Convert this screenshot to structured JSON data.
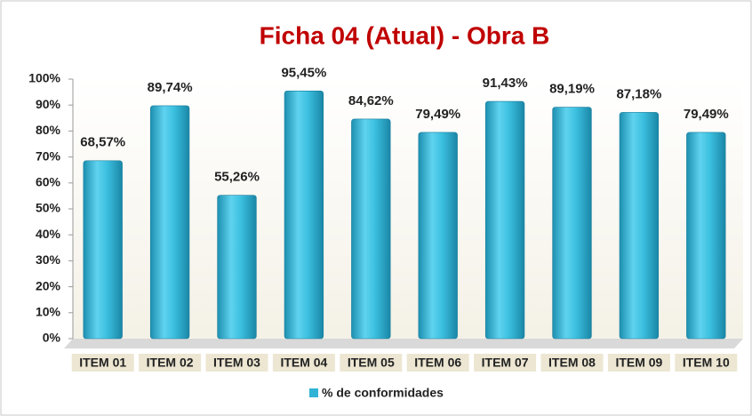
{
  "chart_data": {
    "type": "bar",
    "title": "Ficha 04 (Atual) - Obra B",
    "categories": [
      "ITEM 01",
      "ITEM 02",
      "ITEM 03",
      "ITEM 04",
      "ITEM 05",
      "ITEM 06",
      "ITEM 07",
      "ITEM 08",
      "ITEM 09",
      "ITEM 10"
    ],
    "series": [
      {
        "name": "% de conformidades",
        "color": "#2fb4d6",
        "values": [
          68.57,
          89.74,
          55.26,
          95.45,
          84.62,
          79.49,
          91.43,
          89.19,
          87.18,
          79.49
        ],
        "value_labels": [
          "68,57%",
          "89,74%",
          "55,26%",
          "95,45%",
          "84,62%",
          "79,49%",
          "91,43%",
          "89,19%",
          "87,18%",
          "79,49%"
        ]
      }
    ],
    "ylim": [
      0,
      100
    ],
    "yticks": [
      {
        "value": 0,
        "label": "0%"
      },
      {
        "value": 10,
        "label": "10%"
      },
      {
        "value": 20,
        "label": "20%"
      },
      {
        "value": 30,
        "label": "30%"
      },
      {
        "value": 40,
        "label": "40%"
      },
      {
        "value": 50,
        "label": "50%"
      },
      {
        "value": 60,
        "label": "60%"
      },
      {
        "value": 70,
        "label": "70%"
      },
      {
        "value": 80,
        "label": "80%"
      },
      {
        "value": 90,
        "label": "90%"
      },
      {
        "value": 100,
        "label": "100%"
      }
    ],
    "grid": false,
    "legend": "bottom"
  }
}
